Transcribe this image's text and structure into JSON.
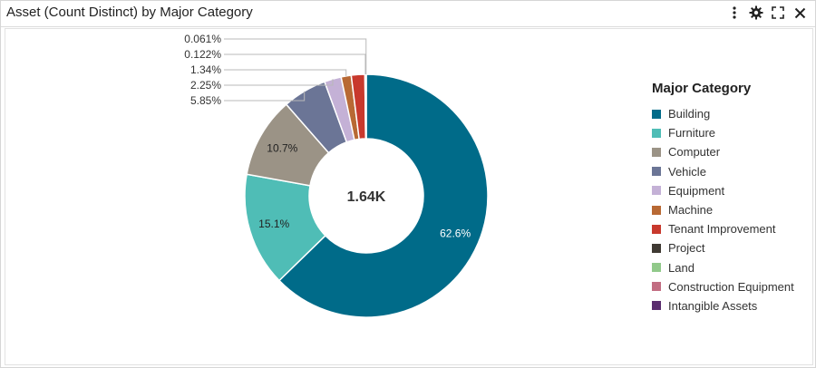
{
  "header": {
    "title": "Asset (Count Distinct) by Major Category",
    "icons": [
      "more-vertical-icon",
      "gear-icon",
      "expand-icon",
      "close-icon"
    ]
  },
  "chart_data": {
    "type": "pie",
    "variant": "donut",
    "center_label": "1.64K",
    "legend_title": "Major Category",
    "legend_position": "right",
    "slices": [
      {
        "name": "Building",
        "value": 62.6,
        "label": "62.6%",
        "color": "#006b89"
      },
      {
        "name": "Furniture",
        "value": 15.1,
        "label": "15.1%",
        "color": "#4fbdb6"
      },
      {
        "name": "Computer",
        "value": 10.7,
        "label": "10.7%",
        "color": "#9b9386"
      },
      {
        "name": "Vehicle",
        "value": 5.85,
        "label": "5.85%",
        "color": "#6b7596"
      },
      {
        "name": "Equipment",
        "value": 2.25,
        "label": "2.25%",
        "color": "#c4b1d6"
      },
      {
        "name": "Machine",
        "value": 1.34,
        "label": "1.34%",
        "color": "#b86934"
      },
      {
        "name": "Tenant Improvement",
        "value": 1.8,
        "label": "",
        "color": "#c8392d"
      },
      {
        "name": "Project",
        "value": 0.122,
        "label": "0.122%",
        "color": "#3f3a33"
      },
      {
        "name": "Land",
        "value": 0.061,
        "label": "0.061%",
        "color": "#91c98a"
      },
      {
        "name": "Construction Equipment",
        "value": 0,
        "label": "",
        "color": "#c26d82"
      },
      {
        "name": "Intangible Assets",
        "value": 0,
        "label": "",
        "color": "#5a2d6e"
      }
    ]
  }
}
